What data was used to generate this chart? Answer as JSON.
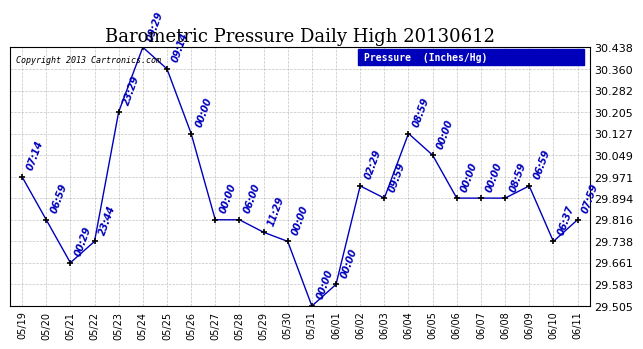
{
  "title": "Barometric Pressure Daily High 20130612",
  "copyright": "Copyright 2013 Cartronics.com",
  "legend_label": "Pressure  (Inches/Hg)",
  "ylim": [
    29.505,
    30.438
  ],
  "yticks": [
    29.505,
    29.583,
    29.661,
    29.738,
    29.816,
    29.894,
    29.971,
    30.049,
    30.127,
    30.205,
    30.282,
    30.36,
    30.438
  ],
  "line_color": "#0000bb",
  "marker_color": "#000000",
  "background_color": "#ffffff",
  "grid_color": "#aaaaaa",
  "dates": [
    "05/19",
    "05/20",
    "05/21",
    "05/22",
    "05/23",
    "05/24",
    "05/25",
    "05/26",
    "05/27",
    "05/28",
    "05/29",
    "05/30",
    "05/31",
    "06/01",
    "06/02",
    "06/03",
    "06/04",
    "06/05",
    "06/06",
    "06/07",
    "06/08",
    "06/09",
    "06/10",
    "06/11"
  ],
  "values": [
    29.971,
    29.816,
    29.661,
    29.738,
    30.205,
    30.438,
    30.36,
    30.127,
    29.816,
    29.816,
    29.771,
    29.738,
    29.505,
    29.583,
    29.938,
    29.894,
    30.127,
    30.049,
    29.894,
    29.894,
    29.894,
    29.938,
    29.738,
    29.816
  ],
  "annotations": [
    "07:14",
    "06:59",
    "00:29",
    "23:44",
    "23:29",
    "09:29",
    "09:14",
    "00:00",
    "00:00",
    "06:00",
    "11:29",
    "00:00",
    "00:00",
    "00:00",
    "02:29",
    "09:59",
    "08:59",
    "00:00",
    "00:00",
    "00:00",
    "08:59",
    "06:59",
    "06:37",
    "07:59"
  ],
  "title_fontsize": 13,
  "annotation_fontsize": 7,
  "tick_fontsize": 8,
  "xtick_fontsize": 7
}
